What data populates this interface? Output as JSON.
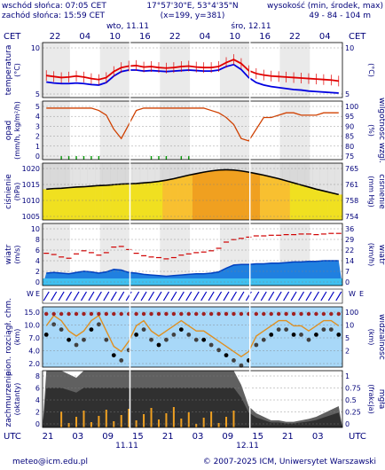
{
  "header": {
    "sunrise": "wschód słońca: 07:05 CET",
    "sunset": "zachód słońca: 15:59 CET",
    "coords": "17°57'30\"E, 53°4'35\"N",
    "grid": "(x=199, y=381)",
    "height_label": "wysokość (min, środek, max)",
    "height_values": "49 - 84 - 104 m"
  },
  "timeaxis": {
    "left_label": "CET",
    "right_label": "CET",
    "top_ticks": [
      "22",
      "04",
      "10",
      "16",
      "22",
      "04",
      "10",
      "16",
      "22",
      "04"
    ],
    "day1": "wto, 11.11",
    "day2": "śro, 12.11",
    "bottom_left": "UTC",
    "bottom_right": "UTC",
    "bottom_ticks": [
      "21",
      "03",
      "09",
      "15",
      "21",
      "03",
      "09",
      "15",
      "21",
      "03"
    ],
    "bottom_day1": "11.11",
    "bottom_day2": "12.11"
  },
  "footer": {
    "email": "meteo@icm.edu.pl",
    "copyright": "© 2007-2025 ICM, Uniwersytet Warszawski"
  },
  "colors": {
    "temperature": "#e00000",
    "dewpoint": "#0000e0",
    "rain": "#009900",
    "humidity": "#d04000",
    "pressure_line": "#000000",
    "wind_mean": "#0040c0",
    "wind_gust": "#d00000",
    "sky": "#a8d8f8"
  },
  "chart_data": [
    {
      "type": "line",
      "name": "temperature",
      "ylabel_left": "temperatura",
      "ylabel_left_unit": "(°C)",
      "ylabel_right_unit": "(°C)",
      "left_ticks": [
        "10",
        "5"
      ],
      "right_ticks": [
        "10",
        "5"
      ],
      "ylim": [
        2,
        13
      ],
      "series": [
        {
          "values": [
            6.4,
            6.2,
            6.0,
            6.1,
            6.3,
            6.1,
            5.8,
            5.6,
            6.0,
            7.2,
            8.0,
            8.3,
            8.4,
            8.1,
            8.2,
            8.0,
            7.9,
            8.0,
            8.2,
            8.3,
            8.1,
            8.0,
            8.0,
            8.2,
            9.0,
            9.6,
            8.8,
            7.4,
            6.8,
            6.5,
            6.3,
            6.2,
            6.1,
            6.0,
            5.9,
            5.8,
            5.7,
            5.6,
            5.5,
            5.3
          ]
        },
        {
          "values": [
            5.1,
            4.9,
            4.8,
            4.8,
            4.9,
            4.8,
            4.6,
            4.5,
            5.0,
            6.3,
            7.2,
            7.5,
            7.5,
            7.3,
            7.4,
            7.3,
            7.2,
            7.3,
            7.4,
            7.5,
            7.4,
            7.3,
            7.3,
            7.5,
            8.2,
            8.6,
            7.6,
            6.0,
            5.0,
            4.5,
            4.2,
            4.0,
            3.8,
            3.6,
            3.5,
            3.3,
            3.2,
            3.1,
            3.0,
            2.9
          ]
        }
      ]
    },
    {
      "type": "line",
      "name": "precipitation",
      "ylabel_left": "opad",
      "ylabel_left_unit": "(mm/h, kg/m²/h)",
      "ylabel_right": "wilgotność wzgl.",
      "ylabel_right_unit": "(%)",
      "left_ticks": [
        "5",
        "4",
        "3",
        "2",
        "1",
        "0"
      ],
      "right_ticks": [
        "100",
        "95",
        "90",
        "85",
        "80",
        "75"
      ],
      "ylim_left": [
        0,
        5
      ],
      "ylim_right": [
        75,
        100
      ],
      "series": [
        {
          "values": [
            97,
            97,
            97,
            97,
            97,
            97,
            97,
            96,
            94,
            88,
            84,
            90,
            96,
            97,
            97,
            97,
            97,
            97,
            97,
            97,
            97,
            97,
            96,
            95,
            93,
            90,
            84,
            83,
            88,
            93,
            93,
            94,
            95,
            95,
            94,
            94,
            94,
            95,
            95,
            95
          ]
        }
      ]
    },
    {
      "type": "line",
      "name": "pressure",
      "ylabel_left": "ciśnienie",
      "ylabel_left_unit": "(hPa)",
      "ylabel_right": "ciśnienie",
      "ylabel_right_unit": "(mm Hg)",
      "left_ticks": [
        "1020",
        "1015",
        "1010",
        "1005"
      ],
      "right_ticks": [
        "765",
        "761",
        "758",
        "754"
      ],
      "ylim": [
        1003,
        1022
      ],
      "series": [
        {
          "values": [
            1013.3,
            1013.5,
            1013.6,
            1013.8,
            1014.0,
            1014.1,
            1014.3,
            1014.5,
            1014.6,
            1014.8,
            1015.0,
            1015.1,
            1015.2,
            1015.4,
            1015.6,
            1015.9,
            1016.3,
            1016.8,
            1017.4,
            1018.0,
            1018.5,
            1019.0,
            1019.4,
            1019.7,
            1019.8,
            1019.7,
            1019.4,
            1019.0,
            1018.5,
            1018.0,
            1017.4,
            1016.8,
            1016.1,
            1015.4,
            1014.7,
            1014.0,
            1013.3,
            1012.7,
            1012.1,
            1011.5
          ]
        }
      ]
    },
    {
      "type": "line",
      "name": "wind",
      "ylabel_left": "wiatr",
      "ylabel_left_unit": "(m/s)",
      "ylabel_right": "wiatr",
      "ylabel_right_unit": "(km/h)",
      "left_ticks": [
        "10",
        "8",
        "6",
        "4",
        "2",
        "0"
      ],
      "right_ticks": [
        "36",
        "29",
        "22",
        "14",
        "7",
        "0"
      ],
      "ylim": [
        0,
        10
      ],
      "series": [
        {
          "values": [
            2.0,
            2.1,
            2.0,
            1.9,
            2.1,
            2.3,
            2.2,
            2.0,
            2.2,
            2.6,
            2.5,
            2.1,
            2.0,
            1.8,
            1.7,
            1.6,
            1.5,
            1.6,
            1.7,
            1.8,
            1.9,
            1.9,
            2.0,
            2.2,
            2.8,
            3.3,
            3.4,
            3.4,
            3.5,
            3.5,
            3.6,
            3.6,
            3.7,
            3.8,
            3.8,
            3.9,
            3.9,
            4.0,
            4.0,
            4.0
          ]
        },
        {
          "values": [
            5.2,
            5.0,
            4.6,
            4.4,
            5.1,
            5.6,
            5.3,
            4.9,
            5.3,
            6.2,
            6.3,
            5.8,
            5.2,
            4.8,
            4.6,
            4.5,
            4.3,
            4.5,
            4.9,
            5.1,
            5.3,
            5.4,
            5.6,
            6.0,
            7.0,
            7.4,
            7.6,
            7.8,
            8.0,
            8.0,
            8.1,
            8.1,
            8.2,
            8.2,
            8.3,
            8.3,
            8.2,
            8.3,
            8.4,
            8.4
          ]
        }
      ]
    },
    {
      "type": "line",
      "name": "cloud_base",
      "ylabel_left": "pion. rozciągł. chm.",
      "ylabel_left_unit": "(km)",
      "ylabel_right": "widzialność",
      "ylabel_right_unit": "(km)",
      "left_ticks": [
        "15.0",
        "10.0",
        "7.0",
        "4.0",
        "2.0"
      ],
      "right_ticks": [
        "100",
        "10",
        "5",
        "2"
      ],
      "series": [
        {
          "values": [
            7,
            9,
            8,
            6,
            5,
            6,
            8,
            9,
            6,
            3,
            2,
            4,
            7,
            8,
            6,
            5,
            6,
            7,
            8,
            7,
            6,
            6,
            5,
            4,
            3,
            2,
            1,
            2,
            5,
            6,
            7,
            8,
            8,
            7,
            7,
            6,
            7,
            8,
            8,
            7
          ]
        }
      ]
    },
    {
      "type": "area",
      "name": "cloud_cover",
      "ylabel_left": "zachmurzenie",
      "ylabel_left_unit": "(oktanty)",
      "ylabel_right": "mgła",
      "ylabel_right_unit": "(frakcja)",
      "left_ticks": [
        "8",
        "6",
        "4",
        "2",
        "0"
      ],
      "right_ticks": [
        "1",
        "0.75",
        "0.5",
        "0.25",
        "0"
      ],
      "series": [
        {
          "values": [
            8,
            8,
            8,
            7.5,
            7,
            8,
            8,
            8,
            8,
            8,
            8,
            8,
            8,
            8,
            8,
            8,
            8,
            8,
            8,
            8,
            8,
            8,
            8,
            8,
            8,
            8,
            6,
            3,
            2,
            1.5,
            1,
            1,
            0.8,
            0.8,
            1,
            1.2,
            1.5,
            2,
            2.5,
            3
          ]
        }
      ]
    }
  ]
}
